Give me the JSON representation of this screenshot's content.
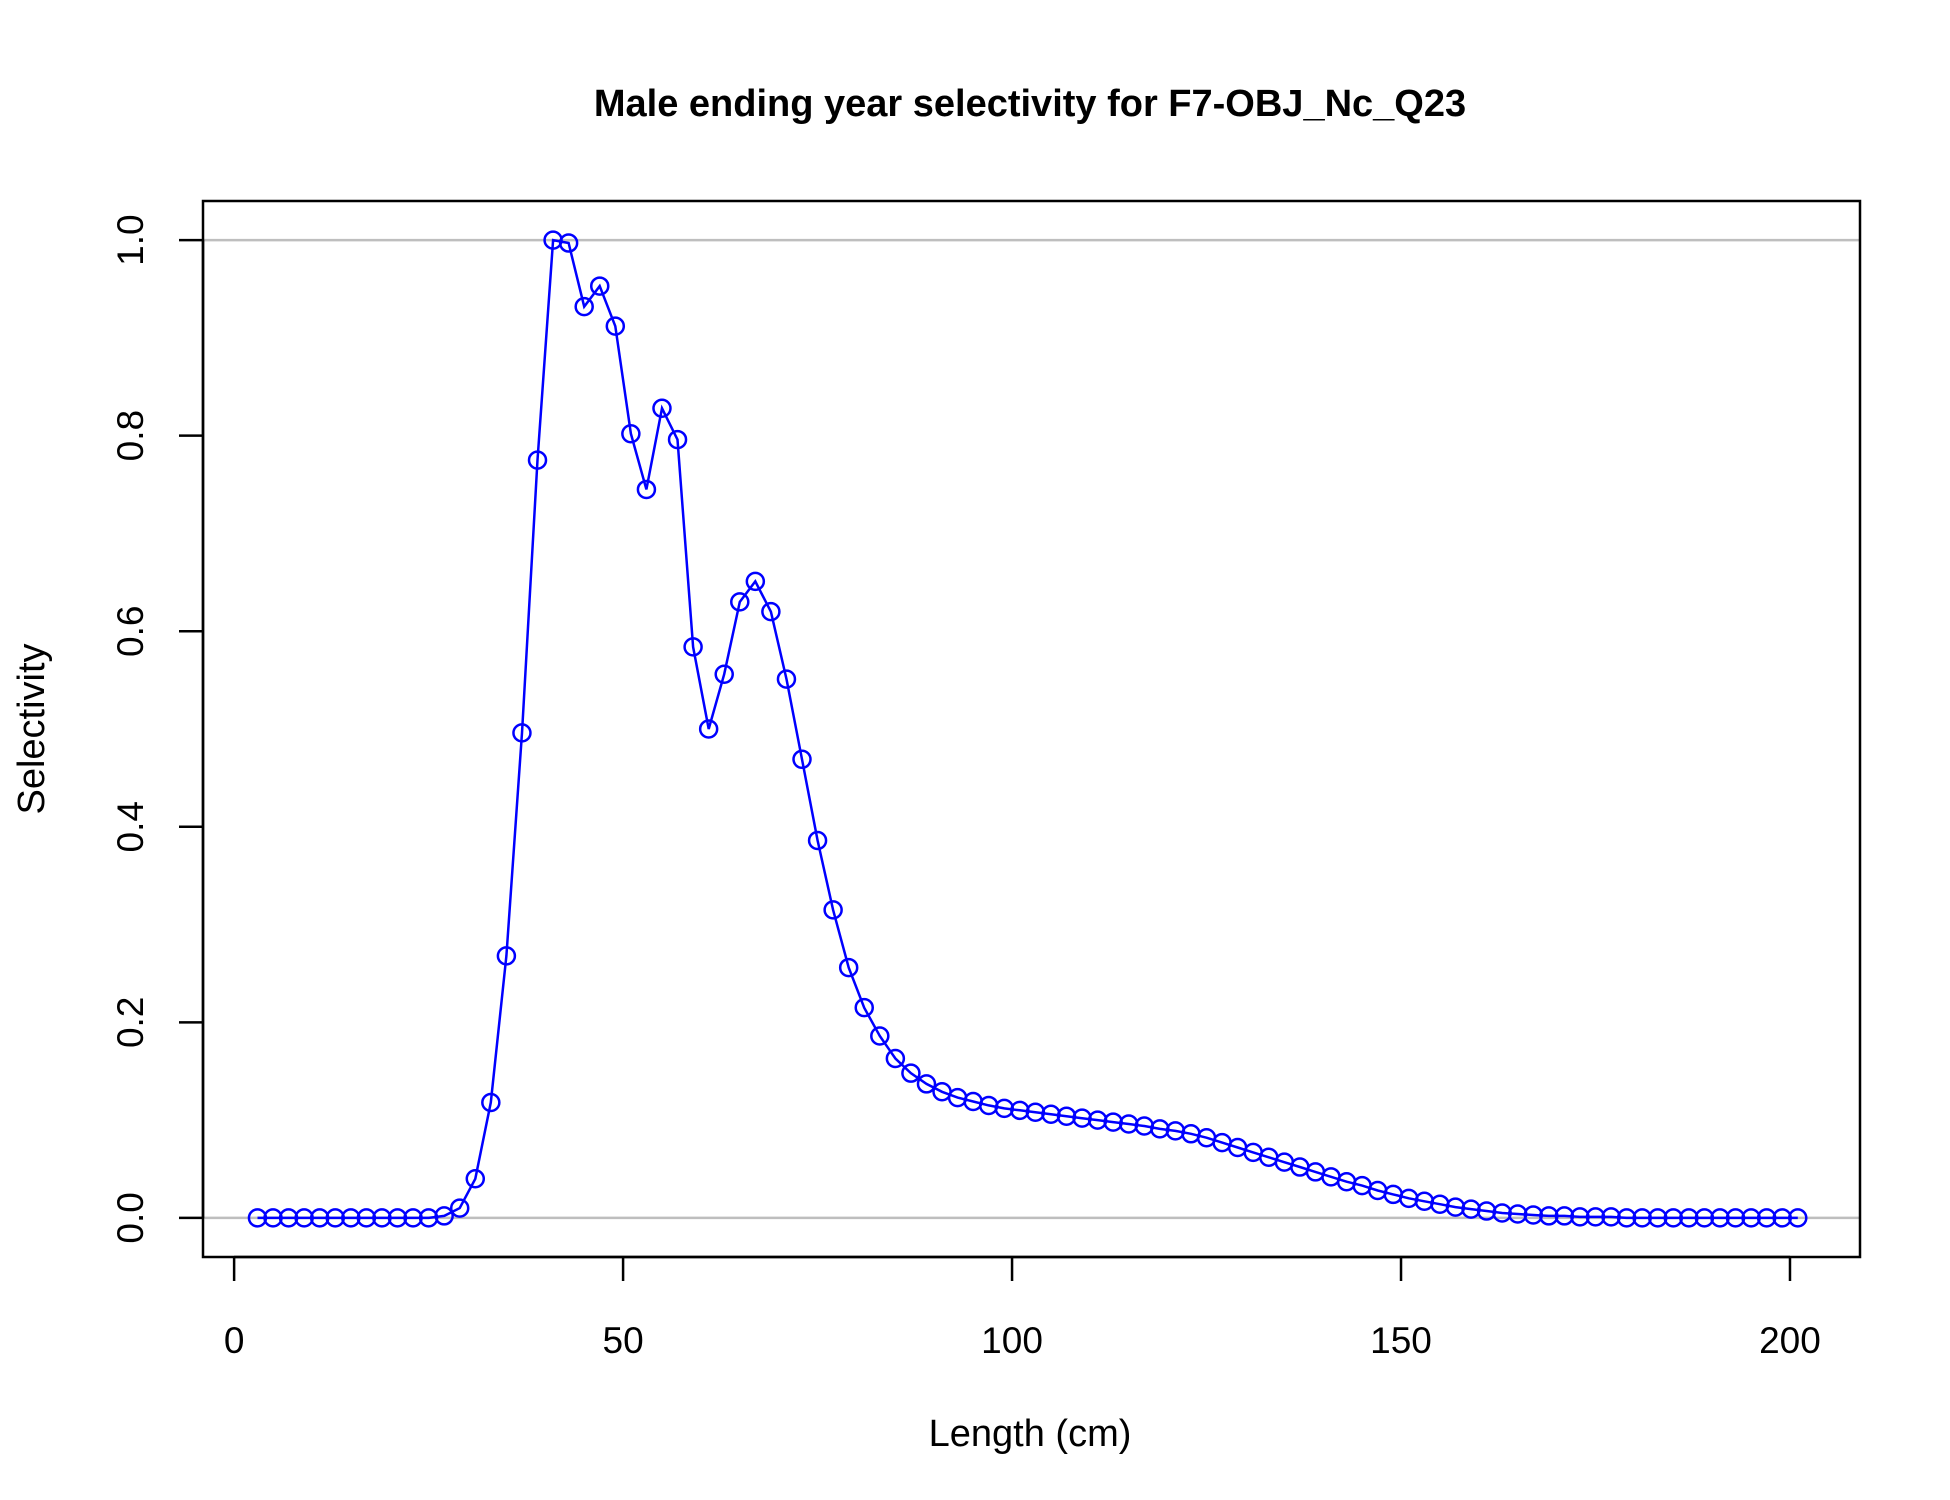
{
  "chart_data": {
    "type": "line",
    "title": "Male ending year selectivity for F7-OBJ_Nc_Q23",
    "xlabel": "Length (cm)",
    "ylabel": "Selectivity",
    "xlim": [
      -4,
      209
    ],
    "ylim": [
      -0.04,
      1.04
    ],
    "x_ticks": [
      0,
      50,
      100,
      150,
      200
    ],
    "y_ticks": [
      0.0,
      0.2,
      0.4,
      0.6,
      0.8,
      1.0
    ],
    "x_tick_labels": [
      "0",
      "50",
      "100",
      "150",
      "200"
    ],
    "y_tick_labels": [
      "0.0",
      "0.2",
      "0.4",
      "0.6",
      "0.8",
      "1.0"
    ],
    "reference_lines_y": [
      0,
      1
    ],
    "reference_line_color": "#bebebe",
    "series_color": "#0000ff",
    "marker": "open-circle",
    "grid": false,
    "series": [
      {
        "x": [
          3,
          5,
          7,
          9,
          11,
          13,
          15,
          17,
          19,
          21,
          23,
          25,
          27,
          29,
          31,
          33,
          35,
          37,
          39,
          41,
          43,
          45,
          47,
          49,
          51,
          53,
          55,
          57,
          59,
          61,
          63,
          65,
          67,
          69,
          71,
          73,
          75,
          77,
          79,
          81,
          83,
          85,
          87,
          89,
          91,
          93,
          95,
          97,
          99,
          101,
          103,
          105,
          107,
          109,
          111,
          113,
          115,
          117,
          119,
          121,
          123,
          125,
          127,
          129,
          131,
          133,
          135,
          137,
          139,
          141,
          143,
          145,
          147,
          149,
          151,
          153,
          155,
          157,
          159,
          161,
          163,
          165,
          167,
          169,
          171,
          173,
          175,
          177,
          179,
          181,
          183,
          185,
          187,
          189,
          191,
          193,
          195,
          197,
          199,
          201
        ],
        "values": [
          0,
          0,
          0,
          0,
          0,
          0,
          0,
          0,
          0,
          0,
          0,
          0,
          0.002,
          0.01,
          0.04,
          0.118,
          0.268,
          0.496,
          0.775,
          1.0,
          0.997,
          0.932,
          0.953,
          0.912,
          0.802,
          0.745,
          0.828,
          0.796,
          0.584,
          0.5,
          0.556,
          0.63,
          0.651,
          0.62,
          0.551,
          0.469,
          0.386,
          0.315,
          0.256,
          0.215,
          0.186,
          0.163,
          0.148,
          0.137,
          0.129,
          0.123,
          0.119,
          0.115,
          0.112,
          0.11,
          0.108,
          0.106,
          0.104,
          0.102,
          0.1,
          0.098,
          0.096,
          0.094,
          0.091,
          0.089,
          0.086,
          0.082,
          0.077,
          0.072,
          0.067,
          0.062,
          0.057,
          0.052,
          0.047,
          0.042,
          0.037,
          0.033,
          0.028,
          0.024,
          0.02,
          0.017,
          0.014,
          0.011,
          0.009,
          0.007,
          0.005,
          0.004,
          0.003,
          0.002,
          0.002,
          0.001,
          0.001,
          0.001,
          0,
          0,
          0,
          0,
          0,
          0,
          0,
          0,
          0,
          0,
          0,
          0
        ]
      }
    ]
  }
}
